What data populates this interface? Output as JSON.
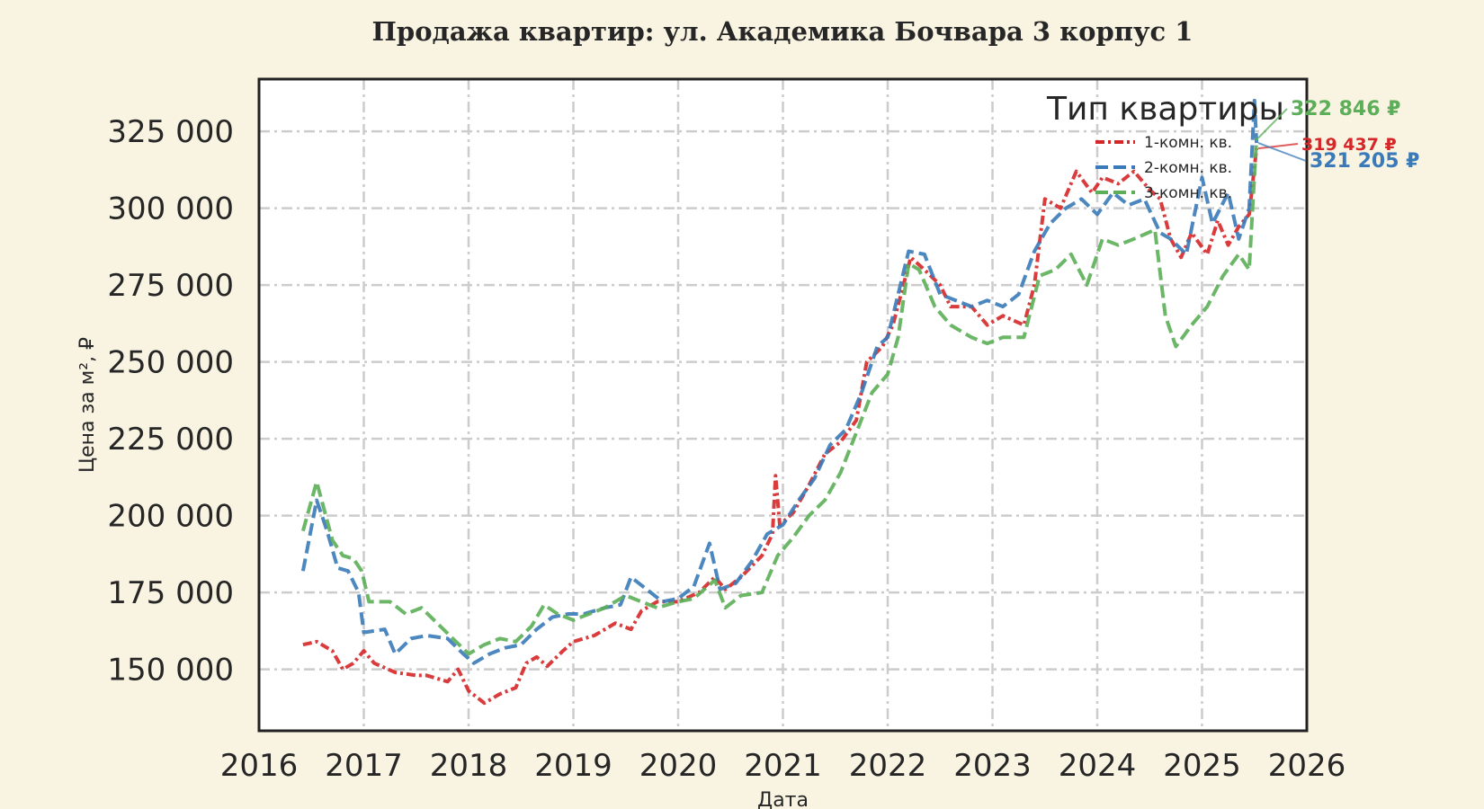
{
  "chart_data": {
    "type": "line",
    "title": "Продажа квартир: ул. Академика Бочвара 3 корпус 1",
    "xlabel": "Дата",
    "ylabel": "Цена за м², ₽",
    "xlim": [
      2016,
      2026
    ],
    "ylim": [
      130000,
      342000
    ],
    "x_ticks": [
      "2016",
      "2017",
      "2018",
      "2019",
      "2020",
      "2021",
      "2022",
      "2023",
      "2024",
      "2025",
      "2026"
    ],
    "y_ticks": [
      {
        "value": 150000,
        "label": "150 000"
      },
      {
        "value": 175000,
        "label": "175 000"
      },
      {
        "value": 200000,
        "label": "200 000"
      },
      {
        "value": 225000,
        "label": "225 000"
      },
      {
        "value": 250000,
        "label": "250 000"
      },
      {
        "value": 275000,
        "label": "275 000"
      },
      {
        "value": 300000,
        "label": "300 000"
      },
      {
        "value": 325000,
        "label": "325 000"
      }
    ],
    "grid": true,
    "legend": {
      "title": "Тип квартиры",
      "position": "top-right"
    },
    "series": [
      {
        "name": "1-комн. кв.",
        "color": "#d62728",
        "dash": "10,4,3,4",
        "end_label": "319 437 ₽",
        "points": [
          [
            2016.42,
            158000
          ],
          [
            2016.55,
            159000
          ],
          [
            2016.7,
            156000
          ],
          [
            2016.8,
            150000
          ],
          [
            2016.9,
            152000
          ],
          [
            2017.0,
            156000
          ],
          [
            2017.1,
            152000
          ],
          [
            2017.3,
            149000
          ],
          [
            2017.5,
            148000
          ],
          [
            2017.6,
            148000
          ],
          [
            2017.8,
            146000
          ],
          [
            2017.9,
            150000
          ],
          [
            2018.0,
            143000
          ],
          [
            2018.15,
            139000
          ],
          [
            2018.3,
            142000
          ],
          [
            2018.45,
            144000
          ],
          [
            2018.55,
            152000
          ],
          [
            2018.65,
            154000
          ],
          [
            2018.75,
            151000
          ],
          [
            2018.9,
            156000
          ],
          [
            2019.0,
            159000
          ],
          [
            2019.2,
            161000
          ],
          [
            2019.4,
            165000
          ],
          [
            2019.55,
            163000
          ],
          [
            2019.65,
            169000
          ],
          [
            2019.8,
            172000
          ],
          [
            2020.0,
            172000
          ],
          [
            2020.2,
            175000
          ],
          [
            2020.35,
            180000
          ],
          [
            2020.45,
            176000
          ],
          [
            2020.6,
            180000
          ],
          [
            2020.8,
            187000
          ],
          [
            2020.9,
            194000
          ],
          [
            2020.93,
            213000
          ],
          [
            2020.97,
            197000
          ],
          [
            2021.1,
            201000
          ],
          [
            2021.25,
            210000
          ],
          [
            2021.4,
            220000
          ],
          [
            2021.55,
            224000
          ],
          [
            2021.7,
            231000
          ],
          [
            2021.8,
            250000
          ],
          [
            2021.95,
            255000
          ],
          [
            2022.05,
            262000
          ],
          [
            2022.15,
            275000
          ],
          [
            2022.22,
            284000
          ],
          [
            2022.35,
            280000
          ],
          [
            2022.5,
            275000
          ],
          [
            2022.6,
            268000
          ],
          [
            2022.8,
            268000
          ],
          [
            2022.95,
            262000
          ],
          [
            2023.1,
            265000
          ],
          [
            2023.3,
            262000
          ],
          [
            2023.4,
            275000
          ],
          [
            2023.5,
            303000
          ],
          [
            2023.65,
            300000
          ],
          [
            2023.8,
            312000
          ],
          [
            2023.95,
            305000
          ],
          [
            2024.05,
            310000
          ],
          [
            2024.2,
            308000
          ],
          [
            2024.35,
            312000
          ],
          [
            2024.5,
            306000
          ],
          [
            2024.6,
            303000
          ],
          [
            2024.7,
            290000
          ],
          [
            2024.8,
            284000
          ],
          [
            2024.9,
            292000
          ],
          [
            2025.05,
            285000
          ],
          [
            2025.15,
            296000
          ],
          [
            2025.25,
            288000
          ],
          [
            2025.35,
            294000
          ],
          [
            2025.45,
            298000
          ],
          [
            2025.52,
            319437
          ]
        ]
      },
      {
        "name": "2-комн. кв.",
        "color": "#3a7ab8",
        "dash": "14,6",
        "end_label": "321 205 ₽",
        "points": [
          [
            2016.42,
            182000
          ],
          [
            2016.55,
            205000
          ],
          [
            2016.65,
            195000
          ],
          [
            2016.75,
            183000
          ],
          [
            2016.85,
            182000
          ],
          [
            2016.95,
            175000
          ],
          [
            2017.0,
            162000
          ],
          [
            2017.2,
            163000
          ],
          [
            2017.3,
            155000
          ],
          [
            2017.45,
            160000
          ],
          [
            2017.6,
            161000
          ],
          [
            2017.8,
            160000
          ],
          [
            2017.95,
            155000
          ],
          [
            2018.05,
            152000
          ],
          [
            2018.2,
            155000
          ],
          [
            2018.35,
            157000
          ],
          [
            2018.5,
            158000
          ],
          [
            2018.65,
            163000
          ],
          [
            2018.8,
            167000
          ],
          [
            2018.95,
            168000
          ],
          [
            2019.1,
            168000
          ],
          [
            2019.3,
            170000
          ],
          [
            2019.45,
            171000
          ],
          [
            2019.55,
            180000
          ],
          [
            2019.7,
            176000
          ],
          [
            2019.85,
            172000
          ],
          [
            2020.0,
            173000
          ],
          [
            2020.15,
            177000
          ],
          [
            2020.3,
            191000
          ],
          [
            2020.4,
            176000
          ],
          [
            2020.55,
            178000
          ],
          [
            2020.7,
            185000
          ],
          [
            2020.85,
            194000
          ],
          [
            2021.0,
            197000
          ],
          [
            2021.15,
            205000
          ],
          [
            2021.3,
            212000
          ],
          [
            2021.45,
            223000
          ],
          [
            2021.6,
            228000
          ],
          [
            2021.75,
            240000
          ],
          [
            2021.9,
            255000
          ],
          [
            2022.0,
            258000
          ],
          [
            2022.1,
            272000
          ],
          [
            2022.2,
            286000
          ],
          [
            2022.35,
            285000
          ],
          [
            2022.5,
            272000
          ],
          [
            2022.65,
            270000
          ],
          [
            2022.8,
            268000
          ],
          [
            2022.95,
            270000
          ],
          [
            2023.1,
            268000
          ],
          [
            2023.25,
            272000
          ],
          [
            2023.4,
            286000
          ],
          [
            2023.55,
            295000
          ],
          [
            2023.7,
            300000
          ],
          [
            2023.85,
            303000
          ],
          [
            2024.0,
            298000
          ],
          [
            2024.15,
            305000
          ],
          [
            2024.3,
            301000
          ],
          [
            2024.45,
            303000
          ],
          [
            2024.6,
            292000
          ],
          [
            2024.7,
            290000
          ],
          [
            2024.85,
            285000
          ],
          [
            2025.0,
            310000
          ],
          [
            2025.1,
            295000
          ],
          [
            2025.25,
            305000
          ],
          [
            2025.35,
            290000
          ],
          [
            2025.45,
            300000
          ],
          [
            2025.5,
            335000
          ],
          [
            2025.52,
            321205
          ]
        ]
      },
      {
        "name": "3-комн. кв.",
        "color": "#5cae58",
        "dash": "14,6",
        "end_label": "322 846 ₽",
        "points": [
          [
            2016.42,
            195000
          ],
          [
            2016.55,
            211000
          ],
          [
            2016.7,
            192000
          ],
          [
            2016.8,
            187000
          ],
          [
            2016.9,
            186000
          ],
          [
            2016.98,
            182000
          ],
          [
            2017.05,
            172000
          ],
          [
            2017.25,
            172000
          ],
          [
            2017.4,
            168000
          ],
          [
            2017.55,
            170000
          ],
          [
            2017.7,
            165000
          ],
          [
            2017.85,
            160000
          ],
          [
            2018.0,
            155000
          ],
          [
            2018.15,
            158000
          ],
          [
            2018.3,
            160000
          ],
          [
            2018.45,
            159000
          ],
          [
            2018.6,
            164000
          ],
          [
            2018.72,
            171000
          ],
          [
            2018.85,
            168000
          ],
          [
            2019.0,
            166000
          ],
          [
            2019.15,
            168000
          ],
          [
            2019.3,
            170000
          ],
          [
            2019.5,
            174000
          ],
          [
            2019.65,
            172000
          ],
          [
            2019.8,
            170000
          ],
          [
            2020.0,
            172000
          ],
          [
            2020.15,
            173000
          ],
          [
            2020.35,
            179000
          ],
          [
            2020.45,
            170000
          ],
          [
            2020.6,
            174000
          ],
          [
            2020.8,
            175000
          ],
          [
            2020.95,
            187000
          ],
          [
            2021.1,
            193000
          ],
          [
            2021.25,
            200000
          ],
          [
            2021.4,
            205000
          ],
          [
            2021.55,
            214000
          ],
          [
            2021.7,
            227000
          ],
          [
            2021.85,
            240000
          ],
          [
            2022.0,
            246000
          ],
          [
            2022.1,
            258000
          ],
          [
            2022.2,
            282000
          ],
          [
            2022.3,
            280000
          ],
          [
            2022.45,
            268000
          ],
          [
            2022.6,
            262000
          ],
          [
            2022.8,
            258000
          ],
          [
            2022.95,
            256000
          ],
          [
            2023.1,
            258000
          ],
          [
            2023.3,
            258000
          ],
          [
            2023.45,
            278000
          ],
          [
            2023.6,
            280000
          ],
          [
            2023.75,
            285000
          ],
          [
            2023.9,
            275000
          ],
          [
            2024.05,
            290000
          ],
          [
            2024.2,
            288000
          ],
          [
            2024.35,
            290000
          ],
          [
            2024.55,
            293000
          ],
          [
            2024.65,
            265000
          ],
          [
            2024.75,
            255000
          ],
          [
            2024.9,
            262000
          ],
          [
            2025.05,
            268000
          ],
          [
            2025.2,
            278000
          ],
          [
            2025.35,
            285000
          ],
          [
            2025.45,
            280000
          ],
          [
            2025.52,
            322846
          ]
        ]
      }
    ]
  }
}
